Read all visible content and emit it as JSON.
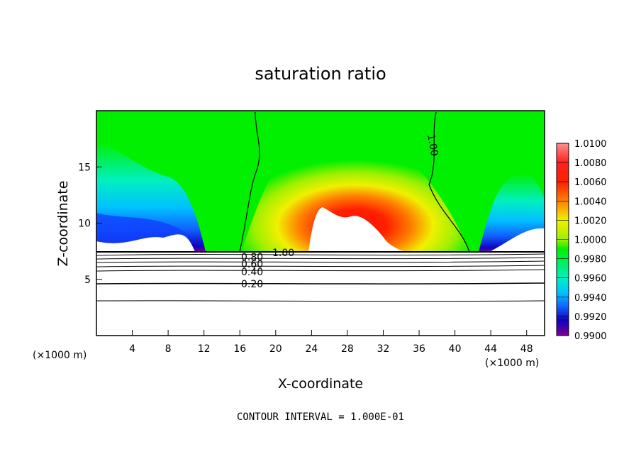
{
  "chart_data": {
    "type": "heatmap",
    "title": "saturation ratio",
    "xlabel": "X-coordinate",
    "ylabel": "Z-coordinate",
    "x_unit": "(×1000 m)",
    "x_unit_right": "(×1000 m)",
    "xlim": [
      0,
      50
    ],
    "ylim": [
      0,
      20
    ],
    "x_ticks": [
      "4",
      "8",
      "12",
      "16",
      "20",
      "24",
      "28",
      "32",
      "36",
      "40",
      "44",
      "48"
    ],
    "y_ticks": [
      "5",
      "10",
      "15"
    ],
    "colorbar": {
      "labels": [
        "1.0100",
        "1.0080",
        "1.0060",
        "1.0040",
        "1.0020",
        "1.0000",
        "0.9980",
        "0.9960",
        "0.9940",
        "0.9920",
        "0.9900"
      ],
      "min": 0.99,
      "max": 1.01
    },
    "contour_labels": [
      "1.00",
      "1.00",
      "0.80",
      "0.60",
      "0.40",
      "0.20"
    ],
    "footer": "CONTOUR INTERVAL = 1.000E-01"
  },
  "colors": {
    "sat_green": "#00f000",
    "cyan": "#00f0c0",
    "blue": "#1060ff",
    "dark_blue": "#1000c0",
    "purple": "#800090",
    "yellow": "#f0f000",
    "orange": "#ff9000",
    "red": "#ff1000"
  }
}
